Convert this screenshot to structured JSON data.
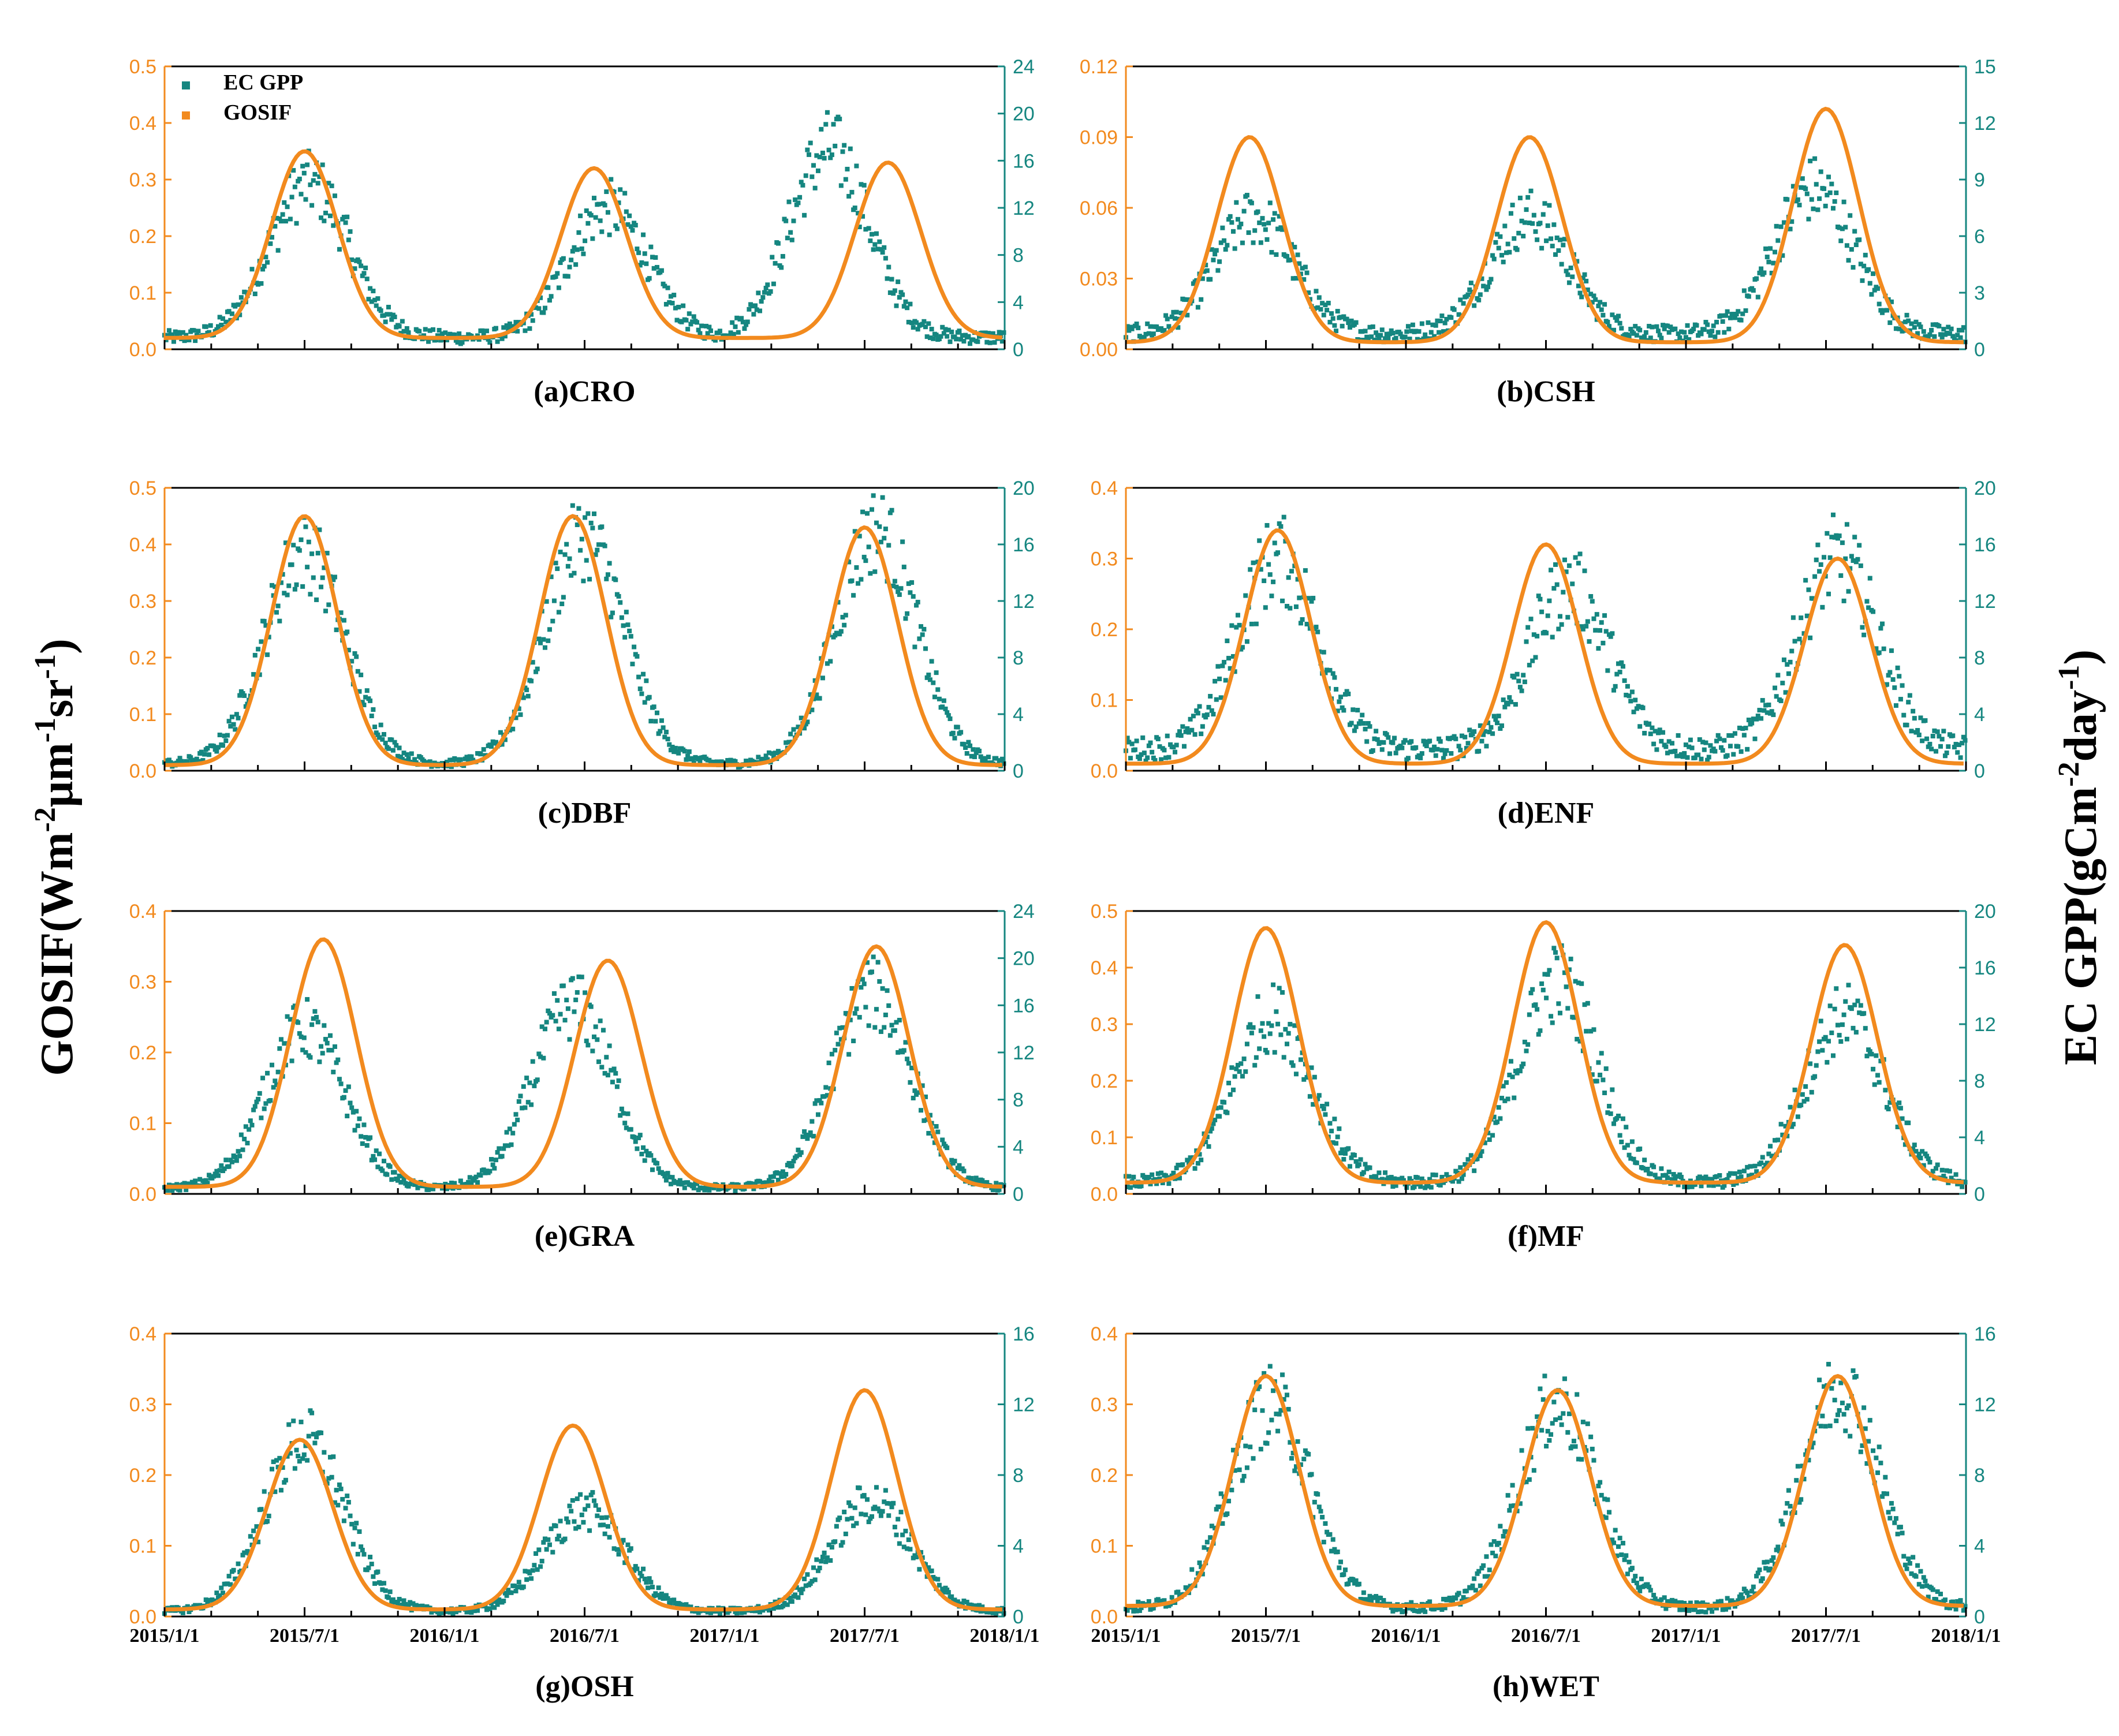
{
  "figure": {
    "ylabel_left_main": "GOSIF(Wm",
    "ylabel_left_exp1": "-2",
    "ylabel_left_mid": "μm",
    "ylabel_left_exp2": "-1",
    "ylabel_left_mid2": "sr",
    "ylabel_left_exp3": "-1",
    "ylabel_left_end": ")",
    "ylabel_right_main": "EC GPP(gCm",
    "ylabel_right_exp1": "-2",
    "ylabel_right_mid": "day",
    "ylabel_right_exp2": "-1",
    "ylabel_right_end": ")",
    "legend": [
      {
        "label": "EC GPP",
        "color": "#158680"
      },
      {
        "label": "GOSIF",
        "color": "#f28a1e"
      }
    ],
    "x_ticks": [
      "2015/1/1",
      "2015/7/1",
      "2016/1/1",
      "2016/7/1",
      "2017/1/1",
      "2017/7/1",
      "2018/1/1"
    ],
    "colors": {
      "gosif": "#f28a1e",
      "gpp": "#158680"
    }
  },
  "chart_data": [
    {
      "type": "line+scatter",
      "title": "(a)CRO",
      "series": [
        {
          "name": "GOSIF",
          "axis": "left",
          "peak_months": [
            6.0,
            18.4,
            31.0
          ],
          "peaks": [
            0.35,
            0.32,
            0.33
          ],
          "baseline": 0.02
        },
        {
          "name": "EC GPP",
          "axis": "right",
          "peak_months": [
            6.2,
            19.0,
            28.5
          ],
          "peaks": [
            14,
            12,
            17
          ],
          "baseline": 1
        }
      ],
      "y_left": {
        "min": 0,
        "max": 0.5,
        "ticks": [
          0.0,
          0.1,
          0.2,
          0.3,
          0.4,
          0.5
        ]
      },
      "y_right": {
        "min": 0,
        "max": 24,
        "ticks": [
          0,
          4,
          8,
          12,
          16,
          20,
          24
        ]
      },
      "x_range_months": [
        0,
        36
      ],
      "position": "row1-left",
      "show_x_labels": false,
      "legend": true
    },
    {
      "type": "line+scatter",
      "title": "(b)CSH",
      "series": [
        {
          "name": "GOSIF",
          "axis": "left",
          "peak_months": [
            5.3,
            17.3,
            30.0
          ],
          "peaks": [
            0.09,
            0.09,
            0.102
          ],
          "baseline": 0.003
        },
        {
          "name": "EC GPP",
          "axis": "right",
          "peak_months": [
            5.5,
            17.3,
            29.5
          ],
          "peaks": [
            7,
            7,
            8.5
          ],
          "baseline": 0.8
        }
      ],
      "y_left": {
        "min": 0,
        "max": 0.12,
        "ticks": [
          0.0,
          0.03,
          0.06,
          0.09,
          0.12
        ]
      },
      "y_right": {
        "min": 0,
        "max": 15,
        "ticks": [
          0,
          3,
          6,
          9,
          12,
          15
        ]
      },
      "x_range_months": [
        0,
        36
      ],
      "position": "row1-right",
      "show_x_labels": false,
      "legend": false
    },
    {
      "type": "line+scatter",
      "title": "(c)DBF",
      "series": [
        {
          "name": "GOSIF",
          "axis": "left",
          "peak_months": [
            6.0,
            17.5,
            30.0
          ],
          "peaks": [
            0.45,
            0.45,
            0.43
          ],
          "baseline": 0.01
        },
        {
          "name": "EC GPP",
          "axis": "right",
          "peak_months": [
            6.0,
            18.0,
            30.5
          ],
          "peaks": [
            15.5,
            16.5,
            17
          ],
          "baseline": 0.5
        }
      ],
      "y_left": {
        "min": 0,
        "max": 0.5,
        "ticks": [
          0.0,
          0.1,
          0.2,
          0.3,
          0.4,
          0.5
        ]
      },
      "y_right": {
        "min": 0,
        "max": 20,
        "ticks": [
          0,
          4,
          8,
          12,
          16,
          20
        ]
      },
      "x_range_months": [
        0,
        36
      ],
      "position": "row2-left",
      "show_x_labels": false,
      "legend": false
    },
    {
      "type": "line+scatter",
      "title": "(d)ENF",
      "series": [
        {
          "name": "GOSIF",
          "axis": "left",
          "peak_months": [
            6.5,
            18.0,
            30.5
          ],
          "peaks": [
            0.34,
            0.32,
            0.3
          ],
          "baseline": 0.01
        },
        {
          "name": "EC GPP",
          "axis": "right",
          "peak_months": [
            6.5,
            19.0,
            30.5
          ],
          "peaks": [
            15,
            13,
            15
          ],
          "baseline": 1.5
        }
      ],
      "y_left": {
        "min": 0,
        "max": 0.4,
        "ticks": [
          0.0,
          0.1,
          0.2,
          0.3,
          0.4
        ]
      },
      "y_right": {
        "min": 0,
        "max": 20,
        "ticks": [
          0,
          4,
          8,
          12,
          16,
          20
        ]
      },
      "x_range_months": [
        0,
        36
      ],
      "position": "row2-right",
      "show_x_labels": false,
      "legend": false
    },
    {
      "type": "line+scatter",
      "title": "(e)GRA",
      "series": [
        {
          "name": "GOSIF",
          "axis": "left",
          "peak_months": [
            6.8,
            19.0,
            30.5
          ],
          "peaks": [
            0.36,
            0.33,
            0.35
          ],
          "baseline": 0.01
        },
        {
          "name": "EC GPP",
          "axis": "right",
          "peak_months": [
            6.0,
            17.5,
            30.3
          ],
          "peaks": [
            14,
            16,
            17
          ],
          "baseline": 0.5
        }
      ],
      "y_left": {
        "min": 0,
        "max": 0.4,
        "ticks": [
          0.0,
          0.1,
          0.2,
          0.3,
          0.4
        ]
      },
      "y_right": {
        "min": 0,
        "max": 24,
        "ticks": [
          0,
          4,
          8,
          12,
          16,
          20,
          24
        ]
      },
      "x_range_months": [
        0,
        36
      ],
      "position": "row3-left",
      "show_x_labels": false,
      "legend": false
    },
    {
      "type": "line+scatter",
      "title": "(f)MF",
      "series": [
        {
          "name": "GOSIF",
          "axis": "left",
          "peak_months": [
            6.0,
            18.0,
            30.8
          ],
          "peaks": [
            0.47,
            0.48,
            0.44
          ],
          "baseline": 0.02
        },
        {
          "name": "EC GPP",
          "axis": "right",
          "peak_months": [
            6.3,
            18.5,
            30.8
          ],
          "peaks": [
            12.5,
            15,
            12.5
          ],
          "baseline": 0.8
        }
      ],
      "y_left": {
        "min": 0,
        "max": 0.5,
        "ticks": [
          0.0,
          0.1,
          0.2,
          0.3,
          0.4,
          0.5
        ]
      },
      "y_right": {
        "min": 0,
        "max": 20,
        "ticks": [
          0,
          4,
          8,
          12,
          16,
          20
        ]
      },
      "x_range_months": [
        0,
        36
      ],
      "position": "row3-right",
      "show_x_labels": false,
      "legend": false
    },
    {
      "type": "line+scatter",
      "title": "(g)OSH",
      "series": [
        {
          "name": "GOSIF",
          "axis": "left",
          "peak_months": [
            5.8,
            17.5,
            30.0
          ],
          "peaks": [
            0.25,
            0.27,
            0.32
          ],
          "baseline": 0.01
        },
        {
          "name": "EC GPP",
          "axis": "right",
          "peak_months": [
            6.0,
            18.0,
            30.3
          ],
          "peaks": [
            10,
            6,
            6.5
          ],
          "baseline": 0.3
        }
      ],
      "y_left": {
        "min": 0,
        "max": 0.4,
        "ticks": [
          0.0,
          0.1,
          0.2,
          0.3,
          0.4
        ]
      },
      "y_right": {
        "min": 0,
        "max": 16,
        "ticks": [
          0,
          4,
          8,
          12,
          16
        ]
      },
      "x_range_months": [
        0,
        36
      ],
      "position": "row4-left",
      "show_x_labels": true,
      "legend": false
    },
    {
      "type": "line+scatter",
      "title": "(h)WET",
      "series": [
        {
          "name": "GOSIF",
          "axis": "left",
          "peak_months": [
            6.0,
            18.5,
            30.5
          ],
          "peaks": [
            0.34,
            0.32,
            0.34
          ],
          "baseline": 0.015
        },
        {
          "name": "EC GPP",
          "axis": "right",
          "peak_months": [
            6.2,
            18.5,
            30.6
          ],
          "peaks": [
            12,
            12,
            13
          ],
          "baseline": 0.5
        }
      ],
      "y_left": {
        "min": 0,
        "max": 0.4,
        "ticks": [
          0.0,
          0.1,
          0.2,
          0.3,
          0.4
        ]
      },
      "y_right": {
        "min": 0,
        "max": 16,
        "ticks": [
          0,
          4,
          8,
          12,
          16
        ]
      },
      "x_range_months": [
        0,
        36
      ],
      "position": "row4-right",
      "show_x_labels": true,
      "legend": false
    }
  ]
}
